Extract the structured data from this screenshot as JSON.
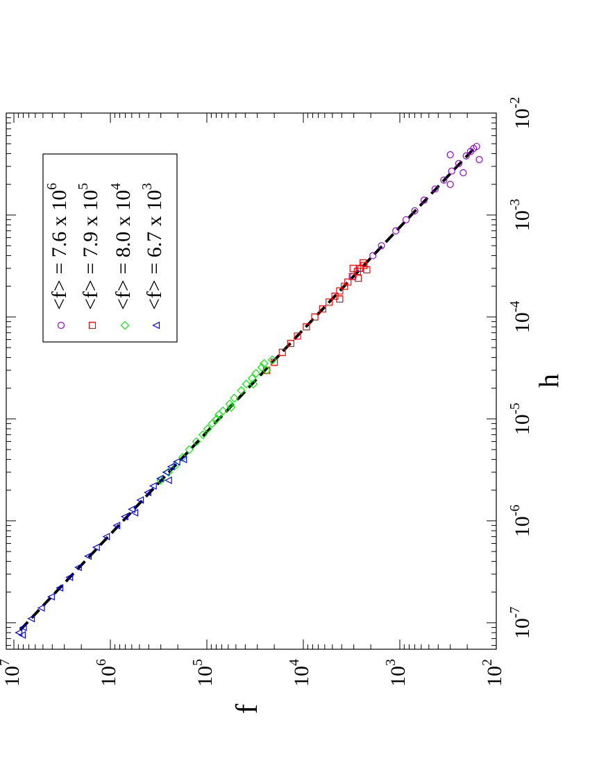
{
  "chart_data": {
    "type": "scatter",
    "orientation": "rotated-90",
    "xlabel": "h",
    "ylabel": "f",
    "x_scale": "log",
    "y_scale": "log",
    "xlim": [
      5.5e-08,
      0.01
    ],
    "ylim": [
      100,
      12000000
    ],
    "x_ticks": [
      {
        "value": 1e-07,
        "base": "10",
        "exp": "-7"
      },
      {
        "value": 1e-06,
        "base": "10",
        "exp": "-6"
      },
      {
        "value": 1e-05,
        "base": "10",
        "exp": "-5"
      },
      {
        "value": 0.0001,
        "base": "10",
        "exp": "-4"
      },
      {
        "value": 0.001,
        "base": "10",
        "exp": "-3"
      },
      {
        "value": 0.01,
        "base": "10",
        "exp": "-2"
      }
    ],
    "y_ticks": [
      {
        "value": 100,
        "base": "10",
        "exp": "2"
      },
      {
        "value": 1000,
        "base": "10",
        "exp": "3"
      },
      {
        "value": 10000,
        "base": "10",
        "exp": "4"
      },
      {
        "value": 100000,
        "base": "10",
        "exp": "5"
      },
      {
        "value": 1000000,
        "base": "10",
        "exp": "6"
      },
      {
        "value": 10000000,
        "base": "10",
        "exp": "7"
      }
    ],
    "grid": false,
    "legend_position": "top-left",
    "fit_line": {
      "style": "dashed",
      "color": "#000000",
      "points": [
        [
          8.5e-08,
          8600000
        ],
        [
          0.0045,
          170
        ]
      ]
    },
    "series": [
      {
        "name_prefix": "<f> = 7.6 x 10",
        "name_exp": "6",
        "marker": "circle",
        "color": "#9400d3",
        "points": [
          [
            0.00025,
            3050
          ],
          [
            0.0003,
            2550
          ],
          [
            0.0004,
            1900
          ],
          [
            0.0005,
            1550
          ],
          [
            0.0007,
            1100
          ],
          [
            0.0009,
            860
          ],
          [
            0.0011,
            700
          ],
          [
            0.0014,
            560
          ],
          [
            0.0018,
            430
          ],
          [
            0.0022,
            350
          ],
          [
            0.0027,
            290
          ],
          [
            0.0032,
            245
          ],
          [
            0.0038,
            205
          ],
          [
            0.0042,
            185
          ],
          [
            0.0045,
            172
          ],
          [
            0.0047,
            160
          ],
          [
            0.0035,
            150
          ],
          [
            0.0039,
            300
          ],
          [
            0.0026,
            220
          ],
          [
            0.002,
            300
          ]
        ]
      },
      {
        "name_prefix": "<f> = 7.9 x 10",
        "name_exp": "5",
        "marker": "square",
        "color": "#ff0000",
        "points": [
          [
            3e-05,
            24000
          ],
          [
            3.6e-05,
            20000
          ],
          [
            4.5e-05,
            16500
          ],
          [
            5.5e-05,
            13500
          ],
          [
            6.5e-05,
            11500
          ],
          [
            8e-05,
            9300
          ],
          [
            0.0001,
            7600
          ],
          [
            0.00012,
            6300
          ],
          [
            0.00014,
            5400
          ],
          [
            0.00016,
            4700
          ],
          [
            0.00018,
            4200
          ],
          [
            0.0002,
            3750
          ],
          [
            0.00022,
            3450
          ],
          [
            0.00025,
            3100
          ],
          [
            0.00028,
            2750
          ],
          [
            0.0003,
            2600
          ],
          [
            0.00032,
            2350
          ],
          [
            0.00029,
            2200
          ],
          [
            0.00024,
            2700
          ],
          [
            0.00034,
            2400
          ],
          [
            0.0003,
            3050
          ],
          [
            0.00015,
            4200
          ]
        ]
      },
      {
        "name_prefix": "<f> = 8.0 x 10",
        "name_exp": "4",
        "marker": "diamond",
        "color": "#00ee00",
        "points": [
          [
            2.5e-06,
            300000
          ],
          [
            3e-06,
            250000
          ],
          [
            3.5e-06,
            212000
          ],
          [
            4.2e-06,
            178000
          ],
          [
            5e-06,
            152000
          ],
          [
            6e-06,
            128000
          ],
          [
            7e-06,
            110000
          ],
          [
            8e-06,
            98000
          ],
          [
            9e-06,
            88000
          ],
          [
            1e-05,
            79000
          ],
          [
            1.1e-05,
            75000
          ],
          [
            1.2e-05,
            68000
          ],
          [
            1.4e-05,
            58000
          ],
          [
            1.6e-05,
            52000
          ],
          [
            1.9e-05,
            44000
          ],
          [
            2.2e-05,
            39000
          ],
          [
            2.5e-05,
            34000
          ],
          [
            2.8e-05,
            31000
          ],
          [
            3.2e-05,
            27000
          ],
          [
            3.5e-05,
            25500
          ],
          [
            3.8e-05,
            21000
          ],
          [
            1.3e-05,
            56000
          ],
          [
            2.2e-05,
            33000
          ],
          [
            3e-05,
            24000
          ]
        ]
      },
      {
        "name_prefix": "<f> = 6.7 x 10",
        "name_exp": "3",
        "marker": "triangle-left",
        "color": "#0000ff",
        "points": [
          [
            8e-08,
            8900000
          ],
          [
            9e-08,
            8000000
          ],
          [
            1.1e-07,
            6600000
          ],
          [
            1.4e-07,
            5200000
          ],
          [
            1.8e-07,
            4100000
          ],
          [
            2.2e-07,
            3350000
          ],
          [
            2.8e-07,
            2650000
          ],
          [
            3.5e-07,
            2150000
          ],
          [
            4.5e-07,
            1700000
          ],
          [
            5.5e-07,
            1400000
          ],
          [
            7e-07,
            1100000
          ],
          [
            9e-07,
            860000
          ],
          [
            1.1e-06,
            710000
          ],
          [
            1.3e-06,
            600000
          ],
          [
            1.6e-06,
            490000
          ],
          [
            1.9e-06,
            410000
          ],
          [
            2.2e-06,
            360000
          ],
          [
            2.6e-06,
            305000
          ],
          [
            3e-06,
            265000
          ],
          [
            3.4e-06,
            235000
          ],
          [
            3.8e-06,
            205000
          ],
          [
            4e-06,
            175000
          ],
          [
            1.2e-06,
            560000
          ],
          [
            2.5e-06,
            250000
          ],
          [
            7.6e-08,
            8200000
          ]
        ]
      }
    ]
  }
}
